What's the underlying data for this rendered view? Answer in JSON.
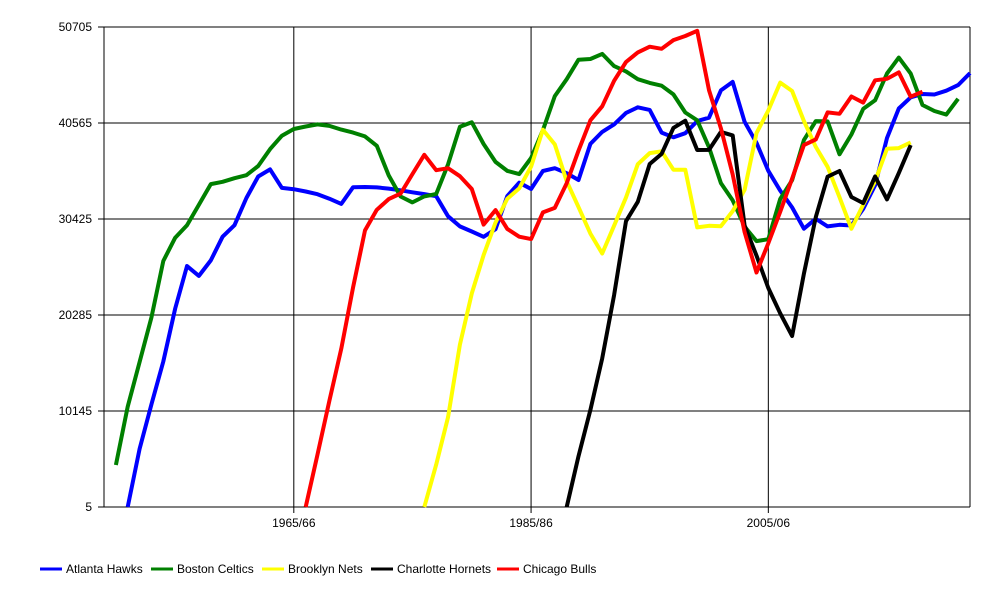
{
  "chart_data": {
    "type": "line",
    "title": "",
    "xlabel": "",
    "ylabel": "",
    "x_start_season": "1949/50",
    "x_tick_labels": [
      "1965/66",
      "1985/86",
      "2005/06"
    ],
    "y_ticks": [
      5,
      10145,
      20285,
      30425,
      40565,
      50705
    ],
    "ylim": [
      5,
      50705
    ],
    "grid": true,
    "legend_position": "bottom-left",
    "series": [
      {
        "name": "Atlanta Hawks",
        "color": "#0000ff",
        "start": 1951,
        "values": [
          5,
          6140,
          10870,
          15370,
          20970,
          25450,
          24420,
          26050,
          28560,
          29770,
          32640,
          34910,
          35660,
          33710,
          33570,
          33330,
          33040,
          32570,
          32020,
          33780,
          33800,
          33760,
          33640,
          33460,
          33240,
          33060,
          32830,
          30720,
          29640,
          29100,
          28550,
          29350,
          32840,
          34260,
          33590,
          35490,
          35790,
          35260,
          34540,
          38360,
          39620,
          40420,
          41630,
          42220,
          41950,
          39550,
          39050,
          39490,
          40770,
          41120,
          44010,
          44910,
          40690,
          38470,
          35520,
          33420,
          31650,
          29400,
          30450,
          29640,
          29810,
          29740,
          31490,
          34000,
          38980,
          42100,
          43280,
          43630,
          43580,
          43980,
          44570,
          45840
        ]
      },
      {
        "name": "Boston Celtics",
        "color": "#008000",
        "start": 1950,
        "values": [
          4440,
          10600,
          15320,
          20050,
          25990,
          28450,
          29770,
          31920,
          34110,
          34350,
          34730,
          35050,
          36020,
          37810,
          39220,
          39930,
          40200,
          40420,
          40260,
          39870,
          39550,
          39150,
          38160,
          35030,
          32800,
          32180,
          32810,
          33070,
          36180,
          40160,
          40640,
          38350,
          36460,
          35510,
          35170,
          36870,
          39800,
          43410,
          45190,
          47250,
          47320,
          47860,
          46580,
          46020,
          45190,
          44800,
          44500,
          43590,
          41670,
          40850,
          38000,
          34220,
          32390,
          29620,
          28090,
          28290,
          32540,
          34520,
          38760,
          40770,
          40730,
          37260,
          39350,
          42050,
          42960,
          45790,
          47470,
          45780,
          42470,
          41830,
          41450,
          43120
        ]
      },
      {
        "name": "Brooklyn Nets",
        "color": "#ffff00",
        "start": 1976,
        "values": [
          5,
          4480,
          9470,
          17150,
          22570,
          26610,
          30050,
          32570,
          33660,
          35960,
          39860,
          38300,
          34410,
          31680,
          28880,
          26780,
          29720,
          32700,
          36210,
          37390,
          37580,
          35630,
          35620,
          29540,
          29710,
          29660,
          31260,
          33510,
          39500,
          41890,
          44830,
          43950,
          40780,
          38040,
          35940,
          32730,
          29390,
          31940,
          34420,
          37850,
          37910,
          38520
        ]
      },
      {
        "name": "Charlotte Hornets",
        "color": "#000000",
        "start": 1988,
        "values": [
          5,
          5370,
          10260,
          15700,
          22390,
          30190,
          32240,
          36230,
          37300,
          40050,
          40810,
          37710,
          37720,
          39630,
          39260,
          29740,
          26560,
          23140,
          20460,
          18070,
          24650,
          30630,
          34890,
          35490,
          32750,
          32100,
          34910,
          32490,
          35270,
          38230
        ]
      },
      {
        "name": "Chicago Bulls",
        "color": "#ff0000",
        "start": 1966,
        "values": [
          5,
          5540,
          11230,
          16740,
          23210,
          29220,
          31400,
          32530,
          33110,
          35170,
          37210,
          35580,
          35790,
          34950,
          33590,
          29830,
          31360,
          29380,
          28560,
          28300,
          31120,
          31600,
          34210,
          37640,
          40850,
          42330,
          45020,
          47010,
          48020,
          48620,
          48400,
          49320,
          49750,
          50300,
          44040,
          40000,
          35130,
          29040,
          24770,
          27870,
          31190,
          34680,
          38230,
          38830,
          41680,
          41540,
          43360,
          42720,
          45070,
          45230,
          45910,
          43340,
          43870
        ]
      }
    ]
  }
}
